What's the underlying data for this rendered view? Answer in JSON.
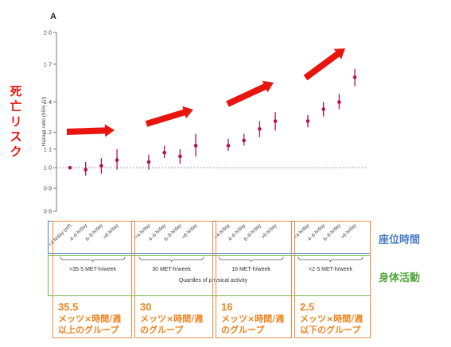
{
  "panel_label": "A",
  "left_title": "死亡リスク",
  "right_labels": {
    "sitting": "座位時間",
    "activity": "身体活動"
  },
  "colors": {
    "point": "#b5124c",
    "arrow": "#e8140e",
    "group_box": "#f08a3c",
    "sitting_box": "#4a7fc6",
    "activity_box": "#6fb84a"
  },
  "chart_data": {
    "type": "scatter",
    "ylabel": "Hazard ratio (95% CI)",
    "xlabel": "Quartiles of physical activity",
    "yscale": "log",
    "ylim": [
      0.8,
      2.0
    ],
    "yticks": [
      "0·8",
      "0·9",
      "1·0",
      "1·1",
      "1·2",
      "1·4",
      "1·7",
      "2·0"
    ],
    "ytick_values": [
      0.8,
      0.9,
      1.0,
      1.1,
      1.2,
      1.4,
      1.7,
      2.0
    ],
    "reference_line": 1.0,
    "sitting_labels": [
      "<4 h/day (ref)",
      "4–6 h/day",
      "6–8 h/day",
      ">8 h/day",
      "<4 h/day",
      "4–6 h/day",
      "6–8 h/day",
      ">8 h/day",
      "<4 h/day",
      "4–6 h/day",
      "6–8 h/day",
      ">8 h/day",
      "<4 h/day",
      "4–6 h/day",
      "6–8 h/day",
      ">8 h/day"
    ],
    "groups": [
      {
        "label": ">35·5 MET-h/week",
        "points": [
          {
            "hr": 1.0,
            "lo": 1.0,
            "hi": 1.0
          },
          {
            "hr": 0.99,
            "lo": 0.96,
            "hi": 1.03
          },
          {
            "hr": 1.01,
            "lo": 0.97,
            "hi": 1.05
          },
          {
            "hr": 1.04,
            "lo": 0.99,
            "hi": 1.1
          }
        ]
      },
      {
        "label": "30 MET-h/week",
        "points": [
          {
            "hr": 1.03,
            "lo": 0.99,
            "hi": 1.07
          },
          {
            "hr": 1.08,
            "lo": 1.05,
            "hi": 1.12
          },
          {
            "hr": 1.06,
            "lo": 1.02,
            "hi": 1.1
          },
          {
            "hr": 1.12,
            "lo": 1.06,
            "hi": 1.19
          }
        ]
      },
      {
        "label": "16 MET-h/week",
        "points": [
          {
            "hr": 1.12,
            "lo": 1.09,
            "hi": 1.16
          },
          {
            "hr": 1.15,
            "lo": 1.12,
            "hi": 1.19
          },
          {
            "hr": 1.22,
            "lo": 1.17,
            "hi": 1.27
          },
          {
            "hr": 1.27,
            "lo": 1.21,
            "hi": 1.33
          }
        ]
      },
      {
        "label": "<2·5 MET-h/week",
        "points": [
          {
            "hr": 1.27,
            "lo": 1.23,
            "hi": 1.31
          },
          {
            "hr": 1.35,
            "lo": 1.3,
            "hi": 1.4
          },
          {
            "hr": 1.4,
            "lo": 1.35,
            "hi": 1.46
          },
          {
            "hr": 1.59,
            "lo": 1.52,
            "hi": 1.66
          }
        ]
      }
    ]
  },
  "group_summaries": [
    {
      "number": "35.5",
      "desc": "メッツ×時間/週\n以上のグループ"
    },
    {
      "number": "30",
      "desc": "メッツ×時間/週\nのグループ"
    },
    {
      "number": "16",
      "desc": "メッツ×時間/週\nのグループ"
    },
    {
      "number": "2.5",
      "desc": "メッツ×時間/週\n以下のグループ"
    }
  ]
}
